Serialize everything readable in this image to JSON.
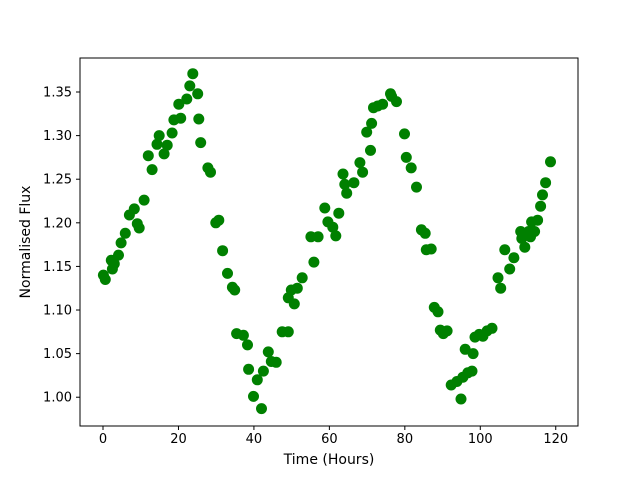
{
  "figure": {
    "background": "#ffffff"
  },
  "chart_data": {
    "type": "scatter",
    "title": "",
    "xlabel": "Time (Hours)",
    "ylabel": "Normalised Flux",
    "x_ticks": [
      0,
      20,
      40,
      60,
      80,
      100,
      120
    ],
    "x_tick_labels": [
      "0",
      "20",
      "40",
      "60",
      "80",
      "100",
      "120"
    ],
    "y_ticks": [
      1.0,
      1.05,
      1.1,
      1.15,
      1.2,
      1.25,
      1.3,
      1.35
    ],
    "y_tick_labels": [
      "1.00",
      "1.05",
      "1.10",
      "1.15",
      "1.20",
      "1.25",
      "1.30",
      "1.35"
    ],
    "xlim": [
      -6.1,
      125.9
    ],
    "ylim": [
      0.967,
      1.389
    ],
    "grid": false,
    "legend": "none",
    "axis_color": "#000000",
    "marker": {
      "shape": "circle",
      "color": "#008000",
      "radius_px": 5.5
    },
    "series": [
      {
        "name": "normalised-flux",
        "x": [
          0.1,
          0.6,
          2.2,
          2.5,
          3.0,
          4.1,
          4.8,
          5.9,
          7.0,
          8.3,
          9.1,
          9.6,
          10.9,
          12.0,
          13.0,
          14.3,
          14.9,
          16.2,
          17.0,
          18.3,
          18.8,
          20.1,
          20.6,
          22.2,
          23.0,
          23.8,
          25.1,
          25.4,
          25.9,
          27.8,
          28.5,
          29.9,
          30.7,
          31.7,
          33.0,
          34.3,
          34.9,
          35.4,
          37.2,
          38.3,
          38.6,
          39.9,
          40.9,
          42.0,
          42.5,
          43.8,
          44.6,
          45.9,
          47.5,
          49.1,
          49.1,
          49.9,
          50.7,
          51.5,
          52.8,
          55.1,
          55.9,
          57.0,
          58.8,
          59.6,
          60.9,
          61.7,
          62.5,
          63.6,
          64.1,
          64.6,
          66.5,
          68.1,
          68.8,
          69.9,
          70.9,
          71.2,
          71.7,
          72.8,
          74.1,
          76.2,
          76.5,
          77.8,
          79.9,
          80.4,
          81.7,
          83.1,
          84.4,
          85.4,
          85.7,
          87.0,
          87.8,
          88.8,
          89.4,
          90.2,
          91.2,
          92.3,
          93.8,
          94.9,
          95.4,
          96.0,
          96.7,
          97.8,
          98.1,
          98.6,
          99.7,
          100.7,
          101.8,
          103.1,
          104.7,
          105.4,
          106.5,
          107.8,
          108.9,
          110.7,
          111.0,
          111.8,
          112.8,
          113.3,
          113.6,
          114.4,
          115.2,
          116.0,
          116.5,
          117.3,
          118.6
        ],
        "y": [
          1.14,
          1.135,
          1.157,
          1.147,
          1.153,
          1.163,
          1.177,
          1.188,
          1.209,
          1.216,
          1.199,
          1.194,
          1.226,
          1.277,
          1.261,
          1.29,
          1.3,
          1.279,
          1.289,
          1.303,
          1.318,
          1.336,
          1.32,
          1.342,
          1.357,
          1.371,
          1.348,
          1.319,
          1.292,
          1.263,
          1.258,
          1.2,
          1.203,
          1.168,
          1.142,
          1.126,
          1.123,
          1.073,
          1.071,
          1.06,
          1.032,
          1.001,
          1.02,
          0.987,
          1.03,
          1.052,
          1.041,
          1.04,
          1.075,
          1.075,
          1.114,
          1.123,
          1.107,
          1.125,
          1.137,
          1.184,
          1.155,
          1.184,
          1.217,
          1.201,
          1.195,
          1.185,
          1.211,
          1.256,
          1.244,
          1.234,
          1.246,
          1.269,
          1.258,
          1.304,
          1.283,
          1.314,
          1.332,
          1.334,
          1.336,
          1.348,
          1.345,
          1.339,
          1.302,
          1.275,
          1.263,
          1.241,
          1.192,
          1.188,
          1.169,
          1.17,
          1.103,
          1.098,
          1.077,
          1.073,
          1.076,
          1.014,
          1.018,
          0.998,
          1.023,
          1.055,
          1.028,
          1.03,
          1.05,
          1.069,
          1.072,
          1.07,
          1.076,
          1.079,
          1.137,
          1.125,
          1.169,
          1.147,
          1.16,
          1.19,
          1.182,
          1.172,
          1.19,
          1.184,
          1.201,
          1.19,
          1.203,
          1.219,
          1.232,
          1.246,
          1.27
        ]
      }
    ]
  }
}
